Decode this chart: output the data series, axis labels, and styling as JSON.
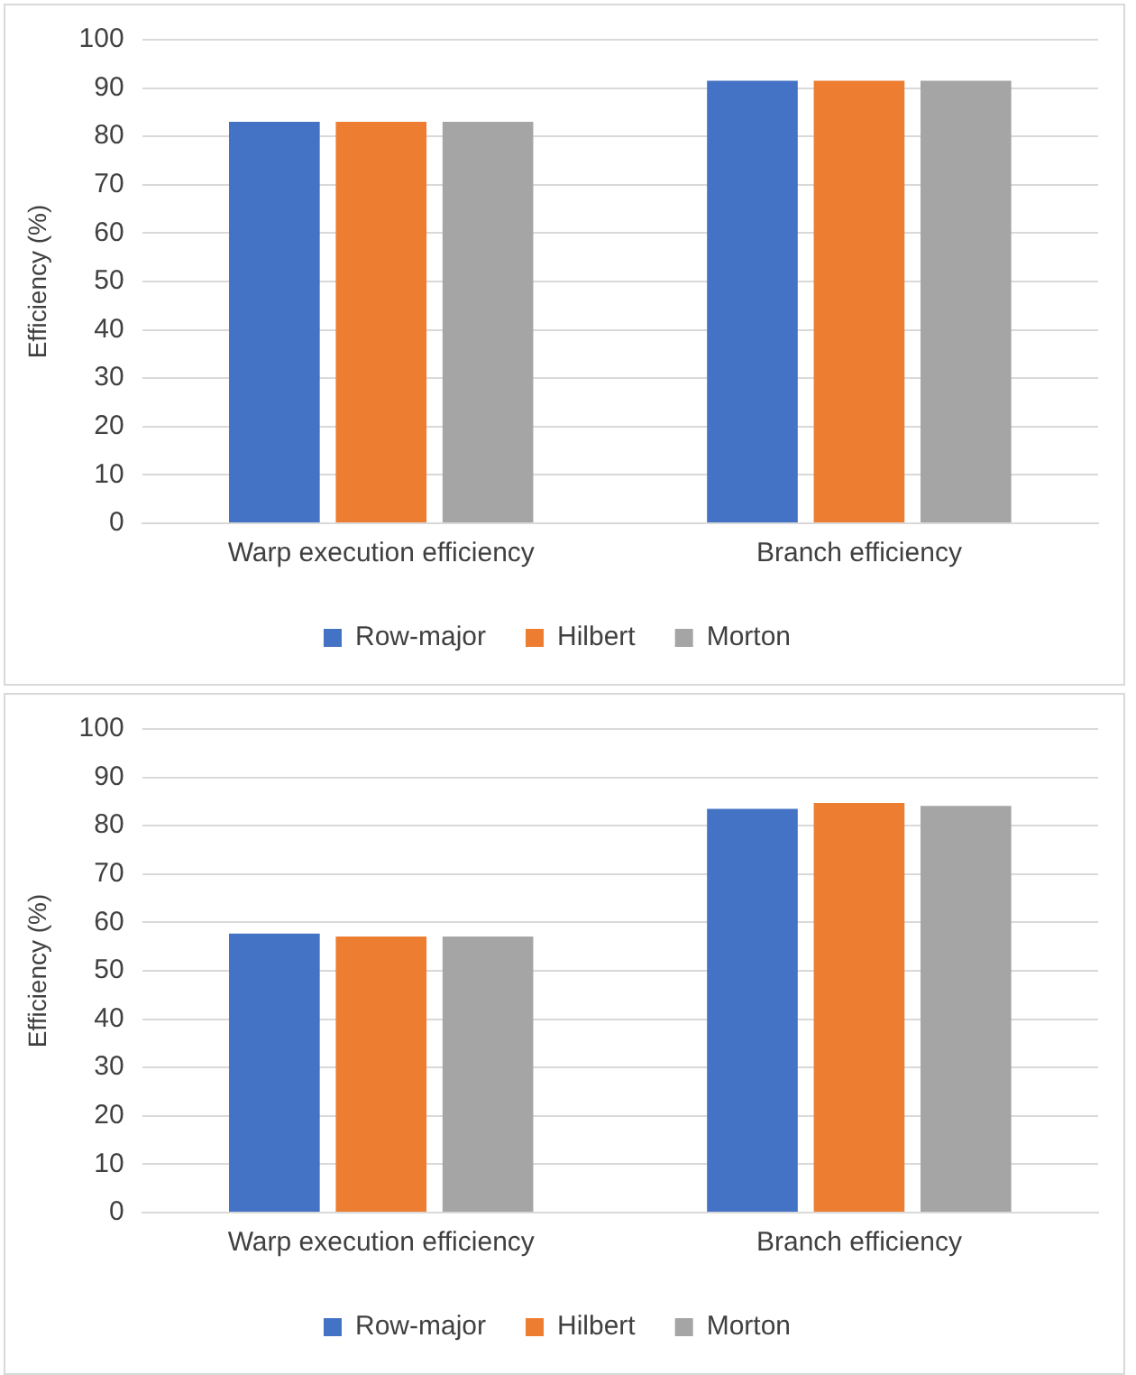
{
  "chart_data": [
    {
      "type": "bar",
      "ylabel": "Efficiency (%)",
      "categories": [
        "Warp execution efficiency",
        "Branch efficiency"
      ],
      "series": [
        {
          "name": "Row-major",
          "color": "#4472c4",
          "values": [
            83,
            91.5
          ]
        },
        {
          "name": "Hilbert",
          "color": "#ed7d31",
          "values": [
            83,
            91.5
          ]
        },
        {
          "name": "Morton",
          "color": "#a5a5a5",
          "values": [
            83,
            91.5
          ]
        }
      ],
      "ylim": [
        0,
        100
      ],
      "yticks": [
        0,
        10,
        20,
        30,
        40,
        50,
        60,
        70,
        80,
        90,
        100
      ],
      "grid": "y",
      "legend": "bottom"
    },
    {
      "type": "bar",
      "ylabel": "Efficiency (%)",
      "categories": [
        "Warp execution efficiency",
        "Branch efficiency"
      ],
      "series": [
        {
          "name": "Row-major",
          "color": "#4472c4",
          "values": [
            57.7,
            83.5
          ]
        },
        {
          "name": "Hilbert",
          "color": "#ed7d31",
          "values": [
            57.1,
            84.7
          ]
        },
        {
          "name": "Morton",
          "color": "#a5a5a5",
          "values": [
            57.1,
            84.1
          ]
        }
      ],
      "ylim": [
        0,
        100
      ],
      "yticks": [
        0,
        10,
        20,
        30,
        40,
        50,
        60,
        70,
        80,
        90,
        100
      ],
      "grid": "y",
      "legend": "bottom"
    }
  ]
}
